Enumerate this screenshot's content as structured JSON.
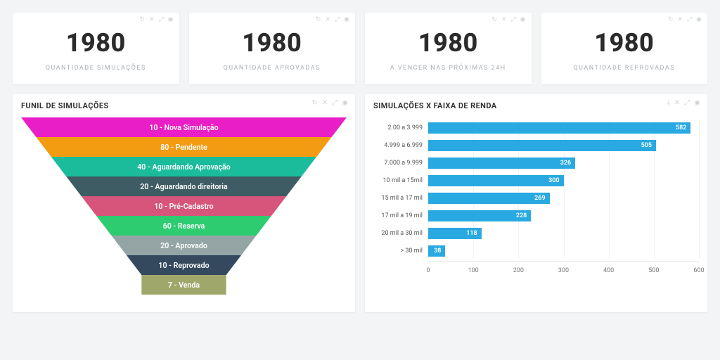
{
  "kpis": [
    {
      "value": "1980",
      "label": "QUANTIDADE SIMULAÇÕES"
    },
    {
      "value": "1980",
      "label": "QUANTIDADE APROVADAS"
    },
    {
      "value": "1980",
      "label": "A VENCER NAS PRÓXIMAS 24H"
    },
    {
      "value": "1980",
      "label": "QUANTIDADE REPROVADAS"
    }
  ],
  "funnel": {
    "title": "FUNIL DE SIMULAÇÕES",
    "type": "funnel",
    "segments": [
      {
        "label": "10 - Nova Simulação",
        "color": "#e91ec6"
      },
      {
        "label": "80 - Pendente",
        "color": "#f39c12"
      },
      {
        "label": "40 - Aguardando Aprovação",
        "color": "#1abc9c"
      },
      {
        "label": "20 - Aguardando direitoria",
        "color": "#3e5c64"
      },
      {
        "label": "10 - Pré-Cadastro",
        "color": "#d7557a"
      },
      {
        "label": "60 - Reserva",
        "color": "#2ecc71"
      },
      {
        "label": "20 - Aprovado",
        "color": "#95a5a6"
      },
      {
        "label": "10 - Reprovado",
        "color": "#34495e"
      },
      {
        "label": "7 - Venda",
        "color": "#a0a76b"
      }
    ],
    "segment_height": 26,
    "top_width_pct": 100,
    "bottom_width_pct": 26,
    "label_fontsize": 11,
    "label_color": "#ffffff"
  },
  "barchart": {
    "title": "SIMULAÇÕES X FAIXA DE RENDA",
    "type": "bar-horizontal",
    "bar_color": "#29a9e1",
    "value_color": "#ffffff",
    "xlim": [
      0,
      600
    ],
    "xtick_step": 100,
    "categories": [
      "2.00 a 3.999",
      "4.999 a 6.999",
      "7.000 a 9.999",
      "10 mil a 15mil",
      "15 mil a 17 mil",
      "17 mil a 19 mil",
      "20 mil a 30 mil",
      "> 30 mil"
    ],
    "values": [
      582,
      505,
      326,
      300,
      269,
      228,
      118,
      38
    ],
    "ylabel_fontsize": 9,
    "value_fontsize": 9,
    "gridline_color": "#f0f2f3",
    "axis_color": "#e3e6e8"
  },
  "card_icons": [
    "↻",
    "✕",
    "⤢",
    "◉"
  ],
  "panel_icons_left": [
    "↻",
    "✕",
    "⤢",
    "◉"
  ],
  "panel_icons_right": [
    "⤓",
    "✕",
    "⤢",
    "◉"
  ]
}
